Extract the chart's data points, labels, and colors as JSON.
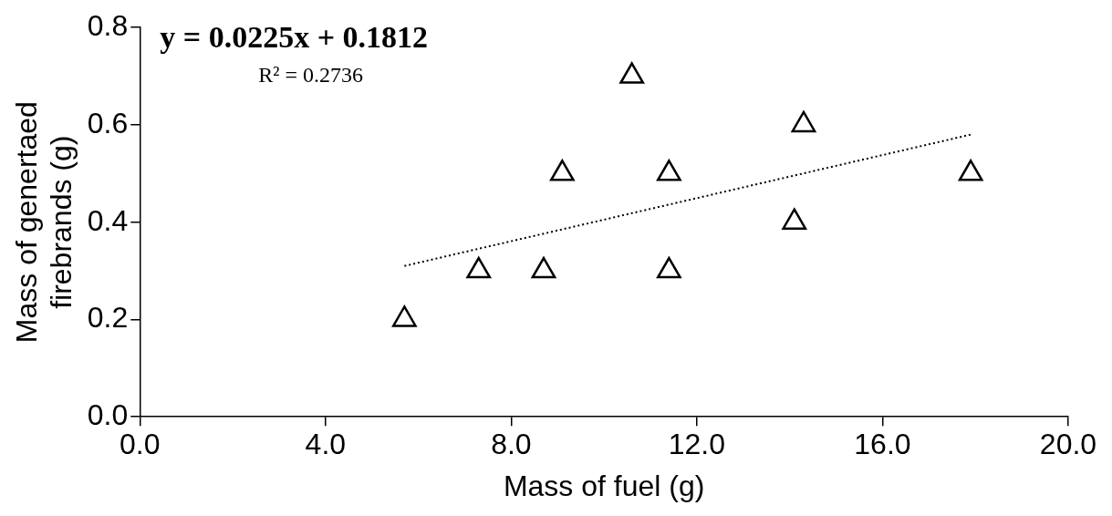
{
  "chart_data": {
    "type": "scatter",
    "xlabel": "Mass of fuel (g)",
    "ylabel": "Mass of genertaed firebrands (g)",
    "annotations": [
      "y = 0.0225x + 0.1812",
      "R² = 0.2736"
    ],
    "xlim": [
      0,
      20
    ],
    "xticks": [
      {
        "value": 0,
        "label": "0.0"
      },
      {
        "value": 4,
        "label": "4.0"
      },
      {
        "value": 8,
        "label": "8.0"
      },
      {
        "value": 12,
        "label": "12.0"
      },
      {
        "value": 16,
        "label": "16.0"
      },
      {
        "value": 20,
        "label": "20.0"
      }
    ],
    "ylim": [
      0,
      0.8
    ],
    "yticks": [
      {
        "value": 0,
        "label": "0.0"
      },
      {
        "value": 0.2,
        "label": "0.2"
      },
      {
        "value": 0.4,
        "label": "0.4"
      },
      {
        "value": 0.6,
        "label": "0.6"
      },
      {
        "value": 0.8,
        "label": "0.8"
      }
    ],
    "grid": false,
    "legend": false,
    "series": [
      {
        "type": "scatter",
        "color": "#000000",
        "marker": "triangle",
        "x": [
          5.7,
          7.3,
          8.7,
          9.1,
          10.6,
          11.4,
          11.4,
          14.1,
          14.3,
          17.9
        ],
        "values": [
          0.2,
          0.3,
          0.3,
          0.5,
          0.7,
          0.5,
          0.3,
          0.4,
          0.6,
          0.5
        ]
      },
      {
        "type": "line",
        "color": "#000000",
        "marker": "none",
        "line_style": "dotted",
        "x": [
          5.7,
          17.9
        ],
        "values": [
          0.31,
          0.58
        ]
      }
    ]
  }
}
